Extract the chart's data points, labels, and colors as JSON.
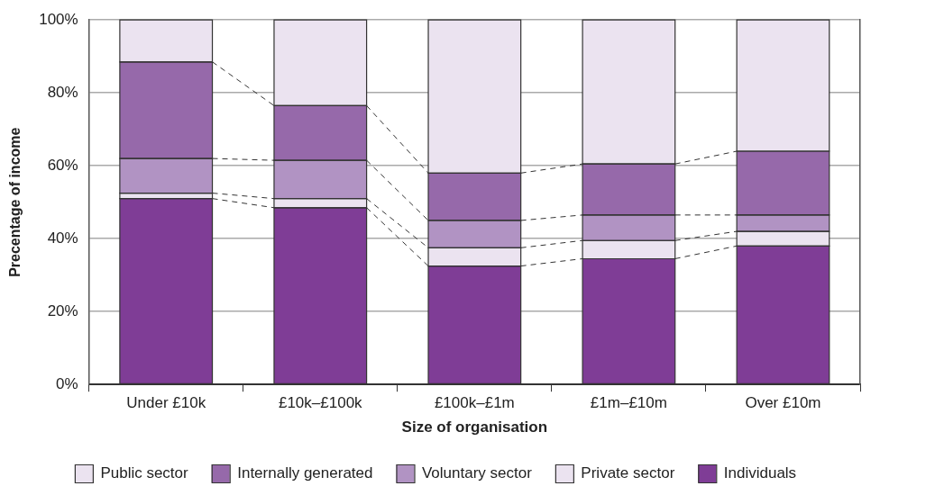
{
  "chart_data": {
    "type": "bar",
    "stacked": true,
    "xlabel": "Size of organisation",
    "ylabel": "Precentage of income",
    "categories": [
      "Under £10k",
      "£10k–£100k",
      "£100k–£1m",
      "£1m–£10m",
      "Over £10m"
    ],
    "series": [
      {
        "name": "Individuals",
        "color": "#7f3d96",
        "values": [
          51,
          48.5,
          32.5,
          34.5,
          38
        ]
      },
      {
        "name": "Private sector",
        "color": "#ebe3f0",
        "values": [
          1.5,
          2.5,
          5,
          5,
          4
        ]
      },
      {
        "name": "Voluntary sector",
        "color": "#b193c3",
        "values": [
          9.5,
          10.5,
          7.5,
          7,
          4.5
        ]
      },
      {
        "name": "Internally generated",
        "color": "#9669aa",
        "values": [
          26.5,
          15,
          13,
          14,
          17.5
        ]
      },
      {
        "name": "Public sector",
        "color": "#ebe3f0",
        "values": [
          11.5,
          23.5,
          42,
          39.5,
          36
        ]
      }
    ],
    "ylim": [
      0,
      100
    ],
    "yticks": [
      {
        "value": 0,
        "label": "0%"
      },
      {
        "value": 20,
        "label": "20%"
      },
      {
        "value": 40,
        "label": "40%"
      },
      {
        "value": 60,
        "label": "60%"
      },
      {
        "value": 80,
        "label": "80%"
      },
      {
        "value": 100,
        "label": "100%"
      }
    ],
    "grid": "y",
    "legend": "bottom"
  }
}
